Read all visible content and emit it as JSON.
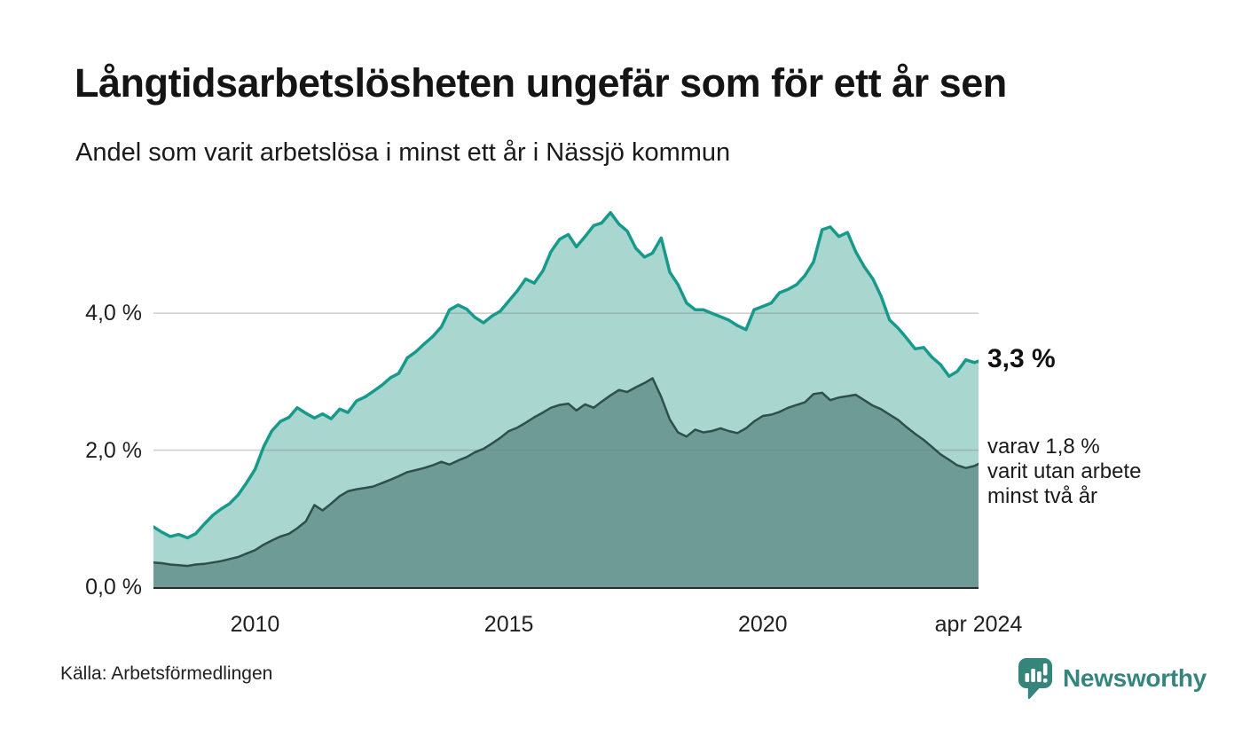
{
  "header": {
    "title": "Långtidsarbetslösheten ungefär som för ett år sen",
    "subtitle": "Andel som varit arbetslösa i minst ett år i Nässjö kommun"
  },
  "chart_data": {
    "type": "area",
    "title": "Långtidsarbetslösheten ungefär som för ett år sen",
    "subtitle": "Andel som varit arbetslösa i minst ett år i Nässjö kommun",
    "x_range": [
      2008.0,
      2024.25
    ],
    "ylim": [
      0,
      5.7
    ],
    "grid": true,
    "legend_position": "none",
    "y_ticks": [
      {
        "value": 0,
        "label": "0,0 %"
      },
      {
        "value": 2,
        "label": "2,0 %"
      },
      {
        "value": 4,
        "label": "4,0 %"
      }
    ],
    "x_ticks": [
      {
        "x": 2010,
        "label": "2010"
      },
      {
        "x": 2015,
        "label": "2015"
      },
      {
        "x": 2020,
        "label": "2020"
      },
      {
        "x": 2024.25,
        "label": "apr 2024"
      }
    ],
    "x": [
      2008.0,
      2008.17,
      2008.33,
      2008.5,
      2008.67,
      2008.83,
      2009.0,
      2009.17,
      2009.33,
      2009.5,
      2009.67,
      2009.83,
      2010.0,
      2010.17,
      2010.33,
      2010.5,
      2010.67,
      2010.83,
      2011.0,
      2011.17,
      2011.33,
      2011.5,
      2011.67,
      2011.83,
      2012.0,
      2012.17,
      2012.33,
      2012.5,
      2012.67,
      2012.83,
      2013.0,
      2013.17,
      2013.33,
      2013.5,
      2013.67,
      2013.83,
      2014.0,
      2014.17,
      2014.33,
      2014.5,
      2014.67,
      2014.83,
      2015.0,
      2015.17,
      2015.33,
      2015.5,
      2015.67,
      2015.83,
      2016.0,
      2016.17,
      2016.33,
      2016.5,
      2016.67,
      2016.83,
      2017.0,
      2017.17,
      2017.33,
      2017.5,
      2017.67,
      2017.83,
      2018.0,
      2018.17,
      2018.33,
      2018.5,
      2018.67,
      2018.83,
      2019.0,
      2019.17,
      2019.33,
      2019.5,
      2019.67,
      2019.83,
      2020.0,
      2020.17,
      2020.33,
      2020.5,
      2020.67,
      2020.83,
      2021.0,
      2021.17,
      2021.33,
      2021.5,
      2021.67,
      2021.83,
      2022.0,
      2022.17,
      2022.33,
      2022.5,
      2022.67,
      2022.83,
      2023.0,
      2023.17,
      2023.33,
      2023.5,
      2023.67,
      2023.83,
      2024.0,
      2024.17,
      2024.25
    ],
    "series": [
      {
        "name": "Arbetslösa minst ett år",
        "line_color": "#179A8B",
        "fill_color": "#AAD6D0",
        "line_width": 3.5,
        "latest_label": "3,3 %",
        "values": [
          0.88,
          0.8,
          0.74,
          0.77,
          0.72,
          0.78,
          0.92,
          1.05,
          1.14,
          1.22,
          1.35,
          1.52,
          1.72,
          2.05,
          2.28,
          2.42,
          2.48,
          2.62,
          2.54,
          2.47,
          2.53,
          2.46,
          2.6,
          2.55,
          2.72,
          2.78,
          2.86,
          2.95,
          3.06,
          3.12,
          3.35,
          3.44,
          3.55,
          3.66,
          3.8,
          4.05,
          4.12,
          4.06,
          3.94,
          3.86,
          3.96,
          4.03,
          4.18,
          4.33,
          4.5,
          4.44,
          4.62,
          4.9,
          5.08,
          5.15,
          4.97,
          5.12,
          5.28,
          5.32,
          5.47,
          5.3,
          5.2,
          4.95,
          4.82,
          4.88,
          5.1,
          4.6,
          4.42,
          4.15,
          4.05,
          4.05,
          4.0,
          3.95,
          3.9,
          3.82,
          3.76,
          4.05,
          4.1,
          4.15,
          4.3,
          4.35,
          4.42,
          4.55,
          4.75,
          5.22,
          5.26,
          5.12,
          5.18,
          4.9,
          4.68,
          4.5,
          4.25,
          3.9,
          3.78,
          3.64,
          3.48,
          3.5,
          3.36,
          3.25,
          3.08,
          3.15,
          3.32,
          3.28,
          3.3
        ]
      },
      {
        "name": "Varav utan arbete minst två år",
        "line_color": "#2E4F4A",
        "fill_color": "#6F9B96",
        "line_width": 2.5,
        "latest_label": "1,8 %",
        "values": [
          0.36,
          0.35,
          0.33,
          0.32,
          0.31,
          0.33,
          0.34,
          0.36,
          0.38,
          0.41,
          0.44,
          0.49,
          0.54,
          0.62,
          0.68,
          0.74,
          0.78,
          0.86,
          0.96,
          1.2,
          1.12,
          1.22,
          1.33,
          1.4,
          1.43,
          1.45,
          1.47,
          1.52,
          1.57,
          1.62,
          1.68,
          1.71,
          1.74,
          1.78,
          1.83,
          1.79,
          1.85,
          1.9,
          1.97,
          2.02,
          2.1,
          2.18,
          2.28,
          2.33,
          2.4,
          2.48,
          2.55,
          2.62,
          2.66,
          2.68,
          2.58,
          2.67,
          2.62,
          2.71,
          2.8,
          2.88,
          2.85,
          2.92,
          2.98,
          3.05,
          2.78,
          2.45,
          2.26,
          2.2,
          2.3,
          2.26,
          2.28,
          2.32,
          2.28,
          2.25,
          2.32,
          2.42,
          2.5,
          2.52,
          2.56,
          2.62,
          2.66,
          2.7,
          2.82,
          2.84,
          2.73,
          2.77,
          2.79,
          2.81,
          2.73,
          2.65,
          2.6,
          2.52,
          2.44,
          2.34,
          2.24,
          2.15,
          2.05,
          1.94,
          1.86,
          1.78,
          1.74,
          1.77,
          1.8
        ]
      }
    ]
  },
  "annotations": {
    "latest_total": "3,3 %",
    "two_year_lines": [
      "varav 1,8 %",
      "varit utan arbete",
      "minst två år"
    ]
  },
  "footer": {
    "source": "Källa: Arbetsförmedlingen",
    "brand": "Newsworthy"
  },
  "colors": {
    "accent_teal": "#179A8B",
    "light_fill": "#AAD6D0",
    "dark_fill": "#6F9B96",
    "dark_line": "#2E4F4A",
    "brand_teal": "#35857D",
    "gridline": "#D9DEDD",
    "baseline": "#2B2B2B"
  }
}
